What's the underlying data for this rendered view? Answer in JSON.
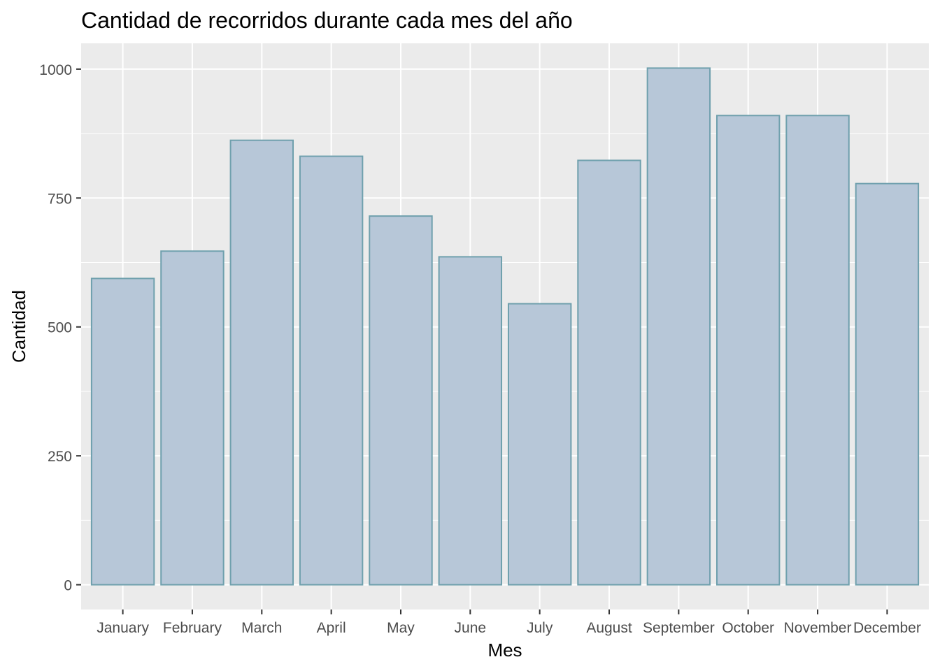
{
  "chart_data": {
    "type": "bar",
    "title": "Cantidad de recorridos durante cada mes del año",
    "xlabel": "Mes",
    "ylabel": "Cantidad",
    "categories": [
      "January",
      "February",
      "March",
      "April",
      "May",
      "June",
      "July",
      "August",
      "September",
      "October",
      "November",
      "December"
    ],
    "values": [
      594,
      647,
      862,
      831,
      715,
      636,
      545,
      823,
      1002,
      910,
      910,
      778
    ],
    "ylim": [
      -48,
      1050
    ],
    "yticks": [
      0,
      250,
      500,
      750,
      1000
    ],
    "ytick_labels": [
      "0",
      "250",
      "500",
      "750",
      "1000"
    ],
    "grid": true,
    "legend": "none",
    "colors": {
      "bar_fill": "#b7c7d8",
      "bar_stroke": "#6fa0ad",
      "panel_background": "#ebebeb",
      "grid": "#ffffff"
    }
  }
}
